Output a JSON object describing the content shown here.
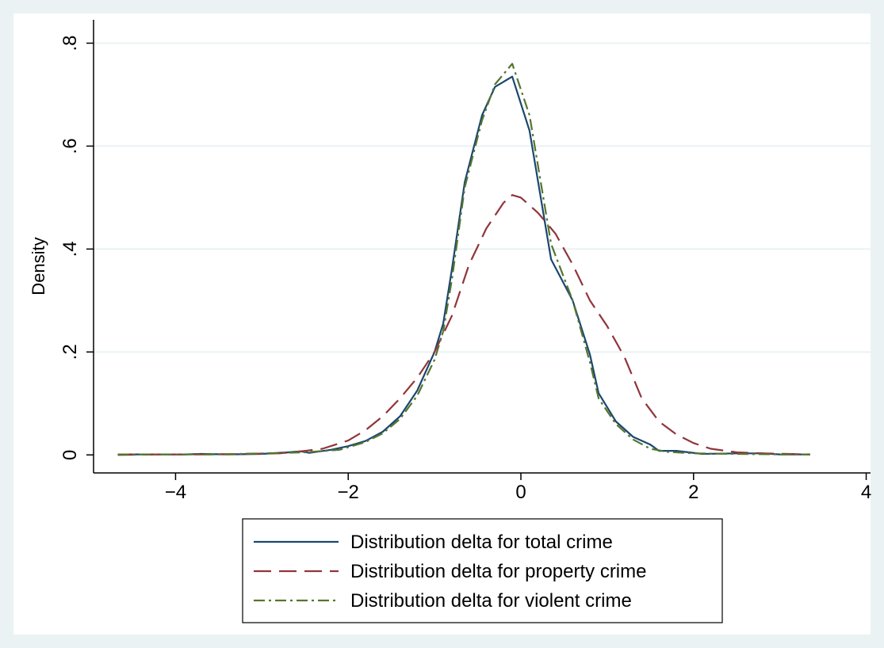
{
  "chart_data": {
    "type": "line",
    "title": "",
    "xlabel": "",
    "ylabel": "Density",
    "xlim": [
      -4.95,
      4.05
    ],
    "ylim": [
      -0.035,
      0.83
    ],
    "x_ticks": [
      {
        "value": -4,
        "label": "−4"
      },
      {
        "value": -2,
        "label": "−2"
      },
      {
        "value": 0,
        "label": "0"
      },
      {
        "value": 2,
        "label": "2"
      },
      {
        "value": 4,
        "label": "4"
      }
    ],
    "y_ticks": [
      {
        "value": 0,
        "label": "0"
      },
      {
        "value": 0.2,
        "label": ".2"
      },
      {
        "value": 0.4,
        "label": ".4"
      },
      {
        "value": 0.6,
        "label": ".6"
      },
      {
        "value": 0.8,
        "label": ".8"
      }
    ],
    "grid": "horizontal",
    "legend_position": "bottom",
    "colors": {
      "background": "#eaf2f3",
      "plot_background": "#ffffff",
      "grid": "#eaf2f3"
    },
    "series": [
      {
        "name": "Distribution delta for total crime",
        "color": "#1a476f",
        "dash": "solid",
        "points": [
          [
            -4.67,
            0.001
          ],
          [
            -4.3,
            0.001
          ],
          [
            -3.9,
            0.001
          ],
          [
            -3.7,
            0.002
          ],
          [
            -3.4,
            0.001
          ],
          [
            -3.0,
            0.002
          ],
          [
            -2.7,
            0.005
          ],
          [
            -2.55,
            0.007
          ],
          [
            -2.45,
            0.004
          ],
          [
            -2.2,
            0.01
          ],
          [
            -2.0,
            0.017
          ],
          [
            -1.8,
            0.027
          ],
          [
            -1.6,
            0.045
          ],
          [
            -1.4,
            0.075
          ],
          [
            -1.2,
            0.125
          ],
          [
            -1.0,
            0.2
          ],
          [
            -0.9,
            0.255
          ],
          [
            -0.8,
            0.36
          ],
          [
            -0.65,
            0.53
          ],
          [
            -0.45,
            0.66
          ],
          [
            -0.3,
            0.715
          ],
          [
            -0.1,
            0.735
          ],
          [
            0.1,
            0.63
          ],
          [
            0.35,
            0.38
          ],
          [
            0.6,
            0.3
          ],
          [
            0.8,
            0.195
          ],
          [
            0.9,
            0.12
          ],
          [
            1.1,
            0.065
          ],
          [
            1.3,
            0.035
          ],
          [
            1.5,
            0.02
          ],
          [
            1.6,
            0.008
          ],
          [
            1.8,
            0.008
          ],
          [
            2.1,
            0.002
          ],
          [
            2.5,
            0.003
          ],
          [
            2.8,
            0.003
          ],
          [
            3.0,
            0.001
          ],
          [
            3.35,
            0.001
          ]
        ]
      },
      {
        "name": "Distribution delta for property crime",
        "color": "#90353b",
        "dash": "long-dash",
        "points": [
          [
            -4.67,
            0.0
          ],
          [
            -4.2,
            0.001
          ],
          [
            -3.7,
            0.001
          ],
          [
            -3.2,
            0.002
          ],
          [
            -2.8,
            0.003
          ],
          [
            -2.6,
            0.006
          ],
          [
            -2.3,
            0.012
          ],
          [
            -2.0,
            0.028
          ],
          [
            -1.8,
            0.048
          ],
          [
            -1.6,
            0.075
          ],
          [
            -1.4,
            0.11
          ],
          [
            -1.2,
            0.15
          ],
          [
            -1.0,
            0.2
          ],
          [
            -0.8,
            0.27
          ],
          [
            -0.6,
            0.37
          ],
          [
            -0.4,
            0.44
          ],
          [
            -0.2,
            0.49
          ],
          [
            -0.1,
            0.505
          ],
          [
            0.0,
            0.5
          ],
          [
            0.2,
            0.47
          ],
          [
            0.4,
            0.43
          ],
          [
            0.6,
            0.37
          ],
          [
            0.8,
            0.3
          ],
          [
            1.0,
            0.25
          ],
          [
            1.2,
            0.19
          ],
          [
            1.4,
            0.11
          ],
          [
            1.6,
            0.065
          ],
          [
            1.8,
            0.04
          ],
          [
            2.0,
            0.023
          ],
          [
            2.2,
            0.012
          ],
          [
            2.5,
            0.005
          ],
          [
            2.8,
            0.003
          ],
          [
            3.1,
            0.002
          ],
          [
            3.35,
            0.001
          ]
        ]
      },
      {
        "name": "Distribution delta for violent crime",
        "color": "#55752f",
        "dash": "dash-dot",
        "points": [
          [
            -4.67,
            0.001
          ],
          [
            -4.0,
            0.001
          ],
          [
            -3.5,
            0.001
          ],
          [
            -3.0,
            0.003
          ],
          [
            -2.5,
            0.005
          ],
          [
            -2.1,
            0.01
          ],
          [
            -1.8,
            0.025
          ],
          [
            -1.6,
            0.042
          ],
          [
            -1.4,
            0.07
          ],
          [
            -1.2,
            0.115
          ],
          [
            -1.0,
            0.185
          ],
          [
            -0.9,
            0.24
          ],
          [
            -0.8,
            0.34
          ],
          [
            -0.65,
            0.52
          ],
          [
            -0.45,
            0.65
          ],
          [
            -0.3,
            0.72
          ],
          [
            -0.1,
            0.76
          ],
          [
            0.1,
            0.66
          ],
          [
            0.35,
            0.41
          ],
          [
            0.6,
            0.3
          ],
          [
            0.8,
            0.18
          ],
          [
            0.9,
            0.11
          ],
          [
            1.1,
            0.06
          ],
          [
            1.3,
            0.03
          ],
          [
            1.5,
            0.012
          ],
          [
            1.7,
            0.006
          ],
          [
            2.0,
            0.003
          ],
          [
            2.5,
            0.002
          ],
          [
            3.0,
            0.001
          ],
          [
            3.35,
            0.001
          ]
        ]
      }
    ]
  }
}
